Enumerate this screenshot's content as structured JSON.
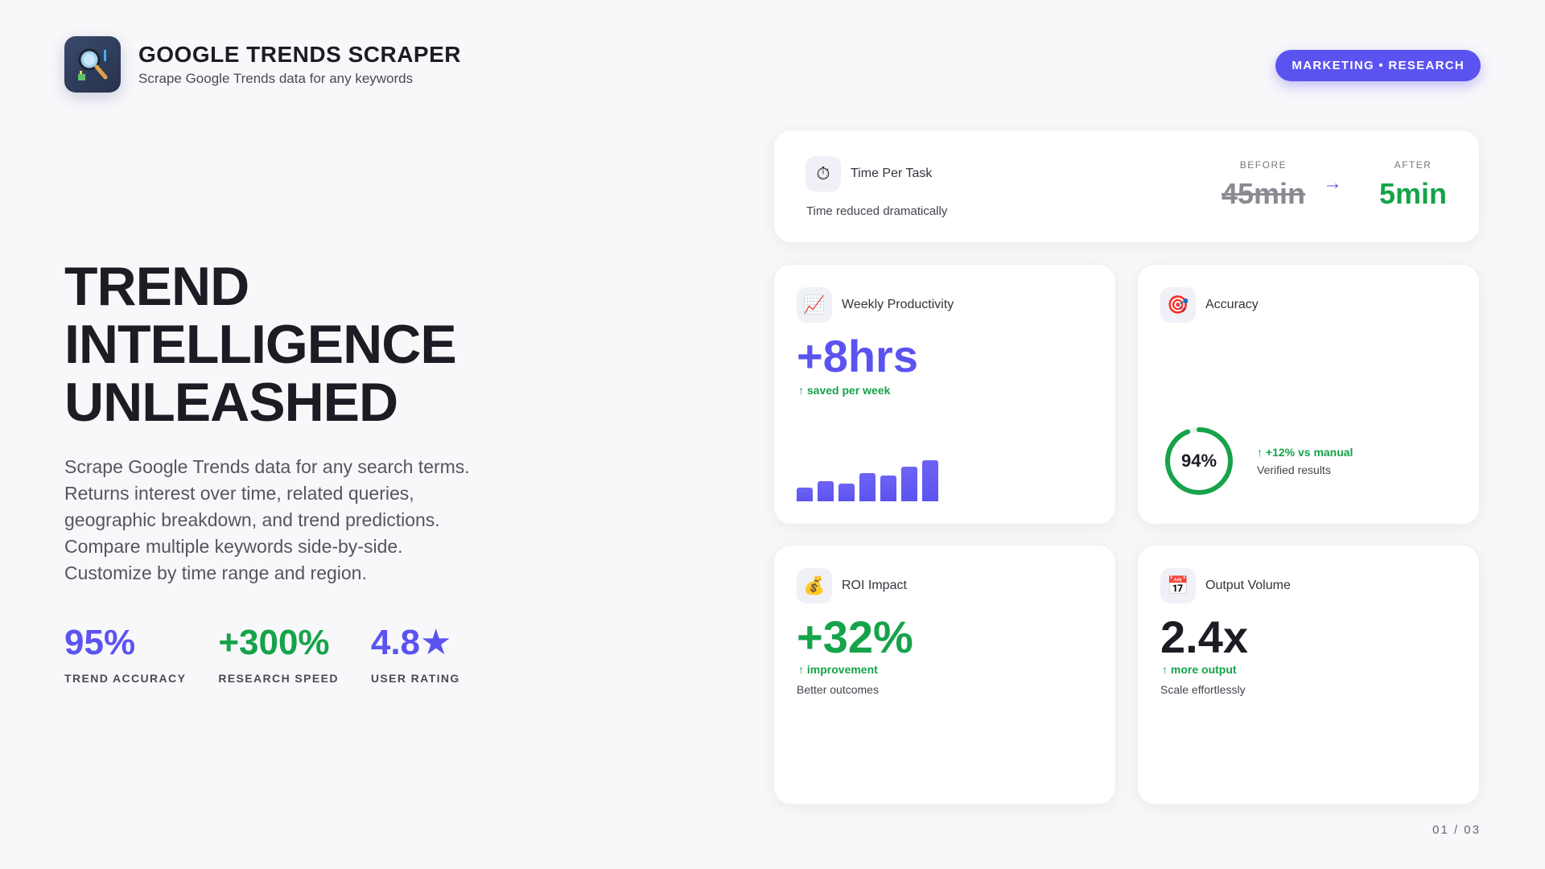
{
  "header": {
    "title": "GOOGLE TRENDS SCRAPER",
    "subtitle": "Scrape Google Trends data for any keywords",
    "tag": "MARKETING • RESEARCH"
  },
  "hero": {
    "title_lines": [
      "TREND",
      "INTELLIGENCE",
      "UNLEASHED"
    ],
    "description": "Scrape Google Trends data for any search terms. Returns interest over time, related queries, geographic breakdown, and trend predictions. Compare multiple keywords side-by-side. Customize by time range and region."
  },
  "stats": [
    {
      "value": "95%",
      "label": "TREND ACCURACY",
      "color": "#5b53f0"
    },
    {
      "value": "+300%",
      "label": "RESEARCH SPEED",
      "color": "#16a34a"
    },
    {
      "value": "4.8★",
      "label": "USER RATING",
      "color": "#5b53f0"
    }
  ],
  "cards": {
    "time": {
      "icon": "stopwatch-icon",
      "label": "Time Per Task",
      "note": "Time reduced dramatically",
      "before_label": "BEFORE",
      "before_value": "45min",
      "arrow": "→",
      "after_label": "AFTER",
      "after_value": "5min"
    },
    "productivity": {
      "icon": "chart-increasing-icon",
      "label": "Weekly Productivity",
      "value": "+8hrs",
      "sub": "↑ saved per week",
      "bars": [
        0.28,
        0.4,
        0.36,
        0.56,
        0.52,
        0.7,
        0.82
      ]
    },
    "accuracy": {
      "icon": "target-icon",
      "label": "Accuracy",
      "value": "94%",
      "fraction": 0.94,
      "sub": "↑ +12% vs manual",
      "note": "Verified results"
    },
    "roi": {
      "icon": "money-bag-icon",
      "label": "ROI Impact",
      "value": "+32%",
      "sub": "↑ improvement",
      "note": "Better outcomes"
    },
    "output": {
      "icon": "calendar-icon",
      "label": "Output Volume",
      "value": "2.4x",
      "sub": "↑ more output",
      "note": "Scale effortlessly"
    }
  },
  "colors": {
    "accent": "#5b53f0",
    "success": "#16a34a",
    "text": "#1c1c24"
  },
  "page": "01 / 03"
}
